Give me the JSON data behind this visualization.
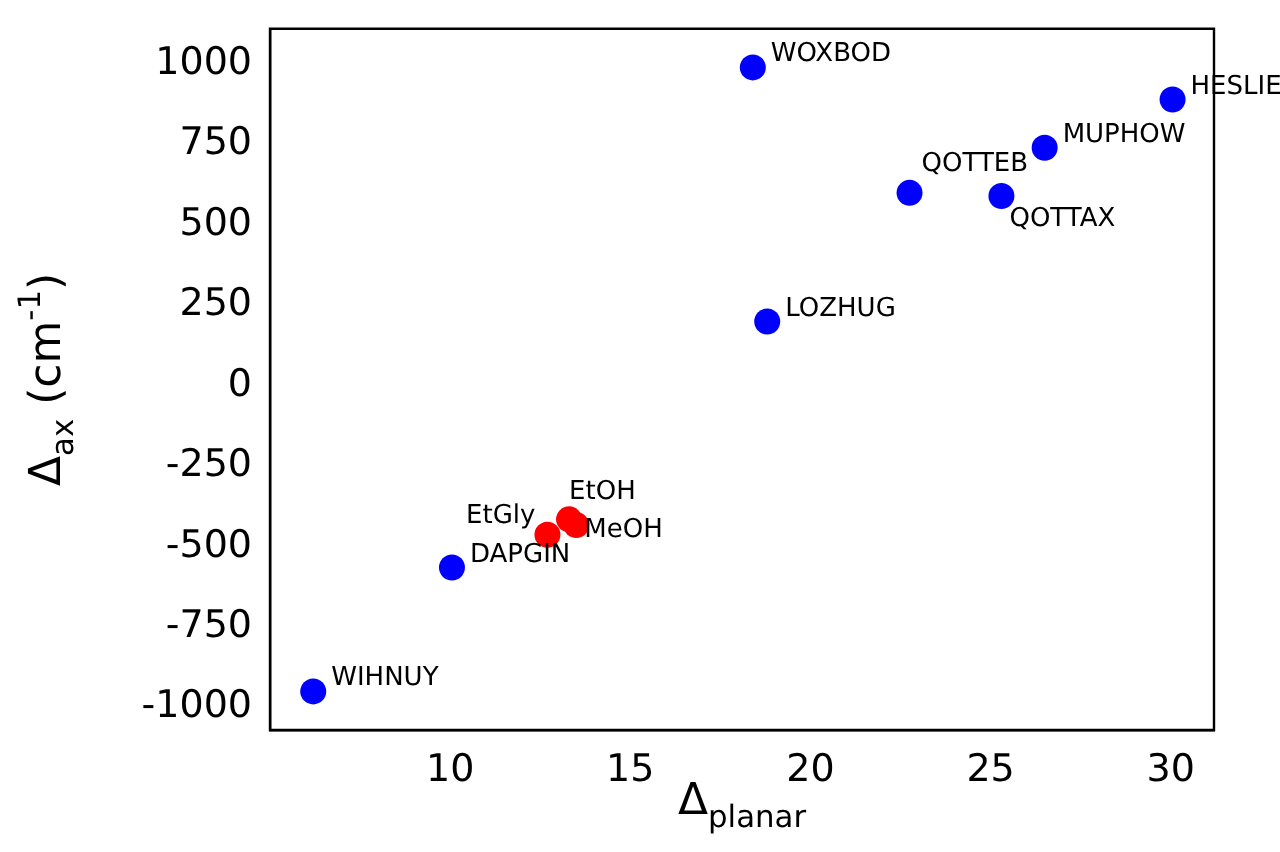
{
  "chart_data": {
    "type": "scatter",
    "xlabel": "Δ$_{planar}$",
    "ylabel": "Δ$_{ax}$ (cm$^{-1}$)",
    "series": [
      {
        "color": "#0000ff",
        "x": [
          6.2,
          10.05,
          18.4,
          18.8,
          22.75,
          25.3,
          26.5,
          30.05
        ],
        "values": [
          -950,
          -565,
          990,
          200,
          600,
          590,
          740,
          890
        ]
      },
      {
        "color": "#ff0000",
        "x": [
          12.7,
          13.3,
          13.5
        ],
        "values": [
          -463,
          -415,
          -433
        ]
      }
    ],
    "xlim": [
      5,
      31.2
    ],
    "ylim": [
      -1070,
      1110
    ],
    "xticks": [
      10,
      15,
      20,
      25,
      30
    ],
    "yticks": [
      -1000,
      -750,
      -500,
      -250,
      0,
      250,
      500,
      750,
      1000
    ],
    "marker": "circle",
    "grid": false,
    "legend": false,
    "annotations": [
      {
        "text": "WIHNUY",
        "x": 6.2,
        "y": -950
      },
      {
        "text": "DAPGIN",
        "x": 10.05,
        "y": -565
      },
      {
        "text": "WOXBOD",
        "x": 18.4,
        "y": 990
      },
      {
        "text": "LOZHUG",
        "x": 18.8,
        "y": 200
      },
      {
        "text": "QOTTEB",
        "x": 22.75,
        "y": 600
      },
      {
        "text": "QOTTAX",
        "x": 25.3,
        "y": 590
      },
      {
        "text": "MUPHOW",
        "x": 26.5,
        "y": 740
      },
      {
        "text": "HESLIE",
        "x": 30.05,
        "y": 890
      },
      {
        "text": "EtGly",
        "x": 12.7,
        "y": -463
      },
      {
        "text": "EtOH",
        "x": 13.3,
        "y": -415
      },
      {
        "text": "MeOH",
        "x": 13.5,
        "y": -433
      }
    ]
  }
}
